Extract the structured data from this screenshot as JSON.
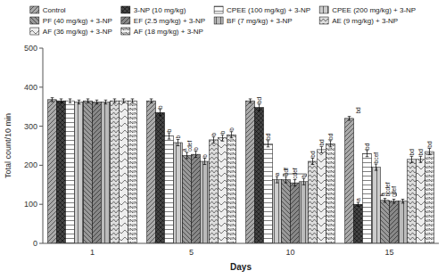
{
  "chart_data": {
    "type": "bar",
    "xlabel": "Days",
    "ylabel": "Total count/10 min",
    "categories": [
      "1",
      "5",
      "10",
      "15"
    ],
    "series": [
      {
        "name": "Control",
        "color": "#aaaaaa",
        "values": [
          368,
          365,
          365,
          320
        ],
        "errors": [
          5,
          5,
          5,
          5
        ]
      },
      {
        "name": "3-NP (10 mg/kg)",
        "color": "#444444",
        "values": [
          365,
          335,
          348,
          100
        ],
        "errors": [
          5,
          8,
          8,
          5
        ]
      },
      {
        "name": "CPEE (100 mg/kg) + 3-NP",
        "color": "#ffffff",
        "values": [
          365,
          275,
          255,
          230
        ],
        "errors": [
          5,
          8,
          8,
          8
        ]
      },
      {
        "name": "CPEE (200 mg/kg) + 3-NP",
        "color": "#cccccc",
        "values": [
          362,
          258,
          163,
          195
        ],
        "errors": [
          5,
          8,
          8,
          8
        ]
      },
      {
        "name": "PF (40 mg/kg) + 3-NP",
        "color": "#999999",
        "values": [
          365,
          225,
          163,
          110
        ],
        "errors": [
          5,
          8,
          8,
          5
        ]
      },
      {
        "name": "EF (2.5 mg/kg) + 3-NP",
        "color": "#888888",
        "values": [
          362,
          228,
          155,
          108
        ],
        "errors": [
          5,
          8,
          8,
          5
        ]
      },
      {
        "name": "BF (7 mg/kg) + 3-NP",
        "color": "#bbbbbb",
        "values": [
          362,
          210,
          158,
          108
        ],
        "errors": [
          5,
          8,
          8,
          5
        ]
      },
      {
        "name": "AE (9 mg/kg) + 3-NP",
        "color": "#dddddd",
        "values": [
          365,
          265,
          210,
          215
        ],
        "errors": [
          5,
          8,
          8,
          8
        ]
      },
      {
        "name": "AF (36 mg/kg) + 3-NP",
        "color": "#eeeeee",
        "values": [
          365,
          270,
          240,
          215
        ],
        "errors": [
          5,
          8,
          8,
          8
        ]
      },
      {
        "name": "AF (18 mg/kg) + 3-NP",
        "color": "#f0f0f0",
        "values": [
          365,
          278,
          255,
          235
        ],
        "errors": [
          5,
          8,
          8,
          8
        ]
      }
    ],
    "annotations": [
      {
        "category": "5",
        "series": "3-NP (10 mg/kg)",
        "y": 345,
        "text": "b"
      },
      {
        "category": "5",
        "series": "CPEE (100 mg/kg) + 3-NP",
        "y": 285,
        "text": "b"
      },
      {
        "category": "5",
        "series": "CPEE (200 mg/kg) + 3-NP",
        "y": 268,
        "text": "b"
      },
      {
        "category": "5",
        "series": "PF (40 mg/kg) + 3-NP",
        "y": 235,
        "text": "a\ncdef"
      },
      {
        "category": "5",
        "series": "EF (2.5 mg/kg) + 3-NP",
        "y": 238,
        "text": "b"
      },
      {
        "category": "5",
        "series": "BF (7 mg/kg) + 3-NP",
        "y": 220,
        "text": "b"
      },
      {
        "category": "5",
        "series": "AE (9 mg/kg) + 3-NP",
        "y": 275,
        "text": "b"
      },
      {
        "category": "5",
        "series": "AF (36 mg/kg) + 3-NP",
        "y": 280,
        "text": "b"
      },
      {
        "category": "5",
        "series": "AF (18 mg/kg) + 3-NP",
        "y": 288,
        "text": "b"
      },
      {
        "category": "10",
        "series": "3-NP (10 mg/kg)",
        "y": 358,
        "text": "bd"
      },
      {
        "category": "10",
        "series": "CPEE (100 mg/kg) + 3-NP",
        "y": 265,
        "text": "bd"
      },
      {
        "category": "10",
        "series": "CPEE (200 mg/kg) + 3-NP",
        "y": 173,
        "text": "a"
      },
      {
        "category": "10",
        "series": "PF (40 mg/kg) + 3-NP",
        "y": 173,
        "text": "bdf"
      },
      {
        "category": "10",
        "series": "EF (2.5 mg/kg) + 3-NP",
        "y": 165,
        "text": "cdef"
      },
      {
        "category": "10",
        "series": "BF (7 mg/kg) + 3-NP",
        "y": 168,
        "text": "b"
      },
      {
        "category": "10",
        "series": "AE (9 mg/kg) + 3-NP",
        "y": 220,
        "text": "bd"
      },
      {
        "category": "10",
        "series": "AF (36 mg/kg) + 3-NP",
        "y": 250,
        "text": "bd"
      },
      {
        "category": "10",
        "series": "AF (18 mg/kg) + 3-NP",
        "y": 265,
        "text": "bd"
      },
      {
        "category": "15",
        "series": "3-NP (10 mg/kg)",
        "y": 108,
        "text": "a"
      },
      {
        "category": "15",
        "series": "CPEE (100 mg/kg) + 3-NP",
        "y": 240,
        "text": "bd"
      },
      {
        "category": "15",
        "series": "CPEE (200 mg/kg) + 3-NP",
        "y": 205,
        "text": "bcef"
      },
      {
        "category": "15",
        "series": "PF (40 mg/kg) + 3-NP",
        "y": 120,
        "text": "b\nbcdef"
      },
      {
        "category": "15",
        "series": "EF (2.5 mg/kg) + 3-NP",
        "y": 118,
        "text": "cdef"
      },
      {
        "category": "15",
        "series": "AE (9 mg/kg) + 3-NP",
        "y": 225,
        "text": "bd"
      },
      {
        "category": "15",
        "series": "AF (36 mg/kg) + 3-NP",
        "y": 225,
        "text": "bd"
      },
      {
        "category": "15",
        "series": "AF (18 mg/kg) + 3-NP",
        "y": 245,
        "text": "bd"
      },
      {
        "category": "15",
        "series": "3-NP (10 mg/kg)",
        "y": 332,
        "text": "bd"
      }
    ],
    "brackets": [
      {
        "category": "10",
        "from": "PF (40 mg/kg) + 3-NP",
        "to": "BF (7 mg/kg) + 3-NP",
        "y": 178
      },
      {
        "category": "15",
        "from": "PF (40 mg/kg) + 3-NP",
        "to": "EF (2.5 mg/kg) + 3-NP",
        "y": 128
      }
    ],
    "ylim": [
      0,
      500
    ],
    "yticks": [
      0,
      100,
      200,
      300,
      400,
      500
    ],
    "grid": false,
    "legend": "top"
  }
}
